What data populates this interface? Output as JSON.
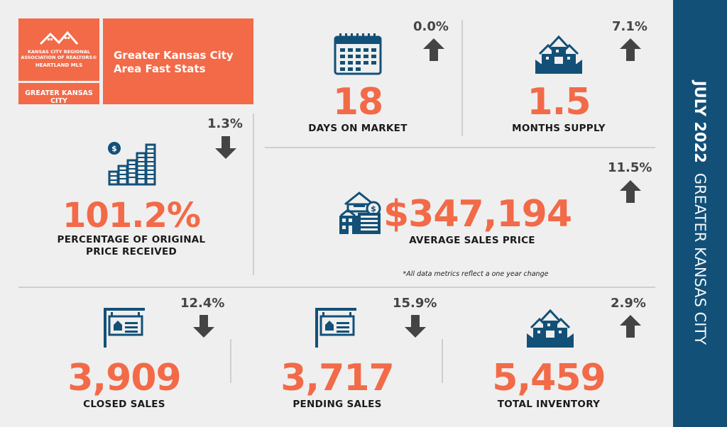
{
  "header": {
    "logo_line1": "KANSAS CITY REGIONAL",
    "logo_line2": "ASSOCIATION OF REALTORS®",
    "logo_line3": "HEARTLAND MLS",
    "logo_region": "GREATER KANSAS CITY",
    "title": "Greater Kansas City\nArea Fast Stats"
  },
  "sidebar": {
    "date": "JULY 2022",
    "region": "GREATER KANSAS CITY"
  },
  "colors": {
    "accent": "#f26a48",
    "sidebar": "#125078",
    "arrow": "#444444"
  },
  "stats": {
    "days_on_market": {
      "value": "18",
      "label": "DAYS ON MARKET",
      "change": "0.0%",
      "direction": "up",
      "icon": "calendar-icon"
    },
    "months_supply": {
      "value": "1.5",
      "label": "MONTHS SUPPLY",
      "change": "7.1%",
      "direction": "up",
      "icon": "houses-icon"
    },
    "pct_original": {
      "value": "101.2%",
      "label": "PERCENTAGE OF ORIGINAL\nPRICE RECEIVED",
      "change": "1.3%",
      "direction": "down",
      "icon": "coin-stacks-icon"
    },
    "avg_price": {
      "value": "$347,194",
      "label": "AVERAGE SALES PRICE",
      "change": "11.5%",
      "direction": "up",
      "icon": "house-price-icon"
    },
    "closed_sales": {
      "value": "3,909",
      "label": "CLOSED SALES",
      "change": "12.4%",
      "direction": "down",
      "icon": "sale-sign-icon"
    },
    "pending_sales": {
      "value": "3,717",
      "label": "PENDING SALES",
      "change": "15.9%",
      "direction": "down",
      "icon": "sale-sign-icon"
    },
    "total_inventory": {
      "value": "5,459",
      "label": "TOTAL INVENTORY",
      "change": "2.9%",
      "direction": "up",
      "icon": "houses-icon"
    }
  },
  "note": "*All data metrics reflect a one year change"
}
